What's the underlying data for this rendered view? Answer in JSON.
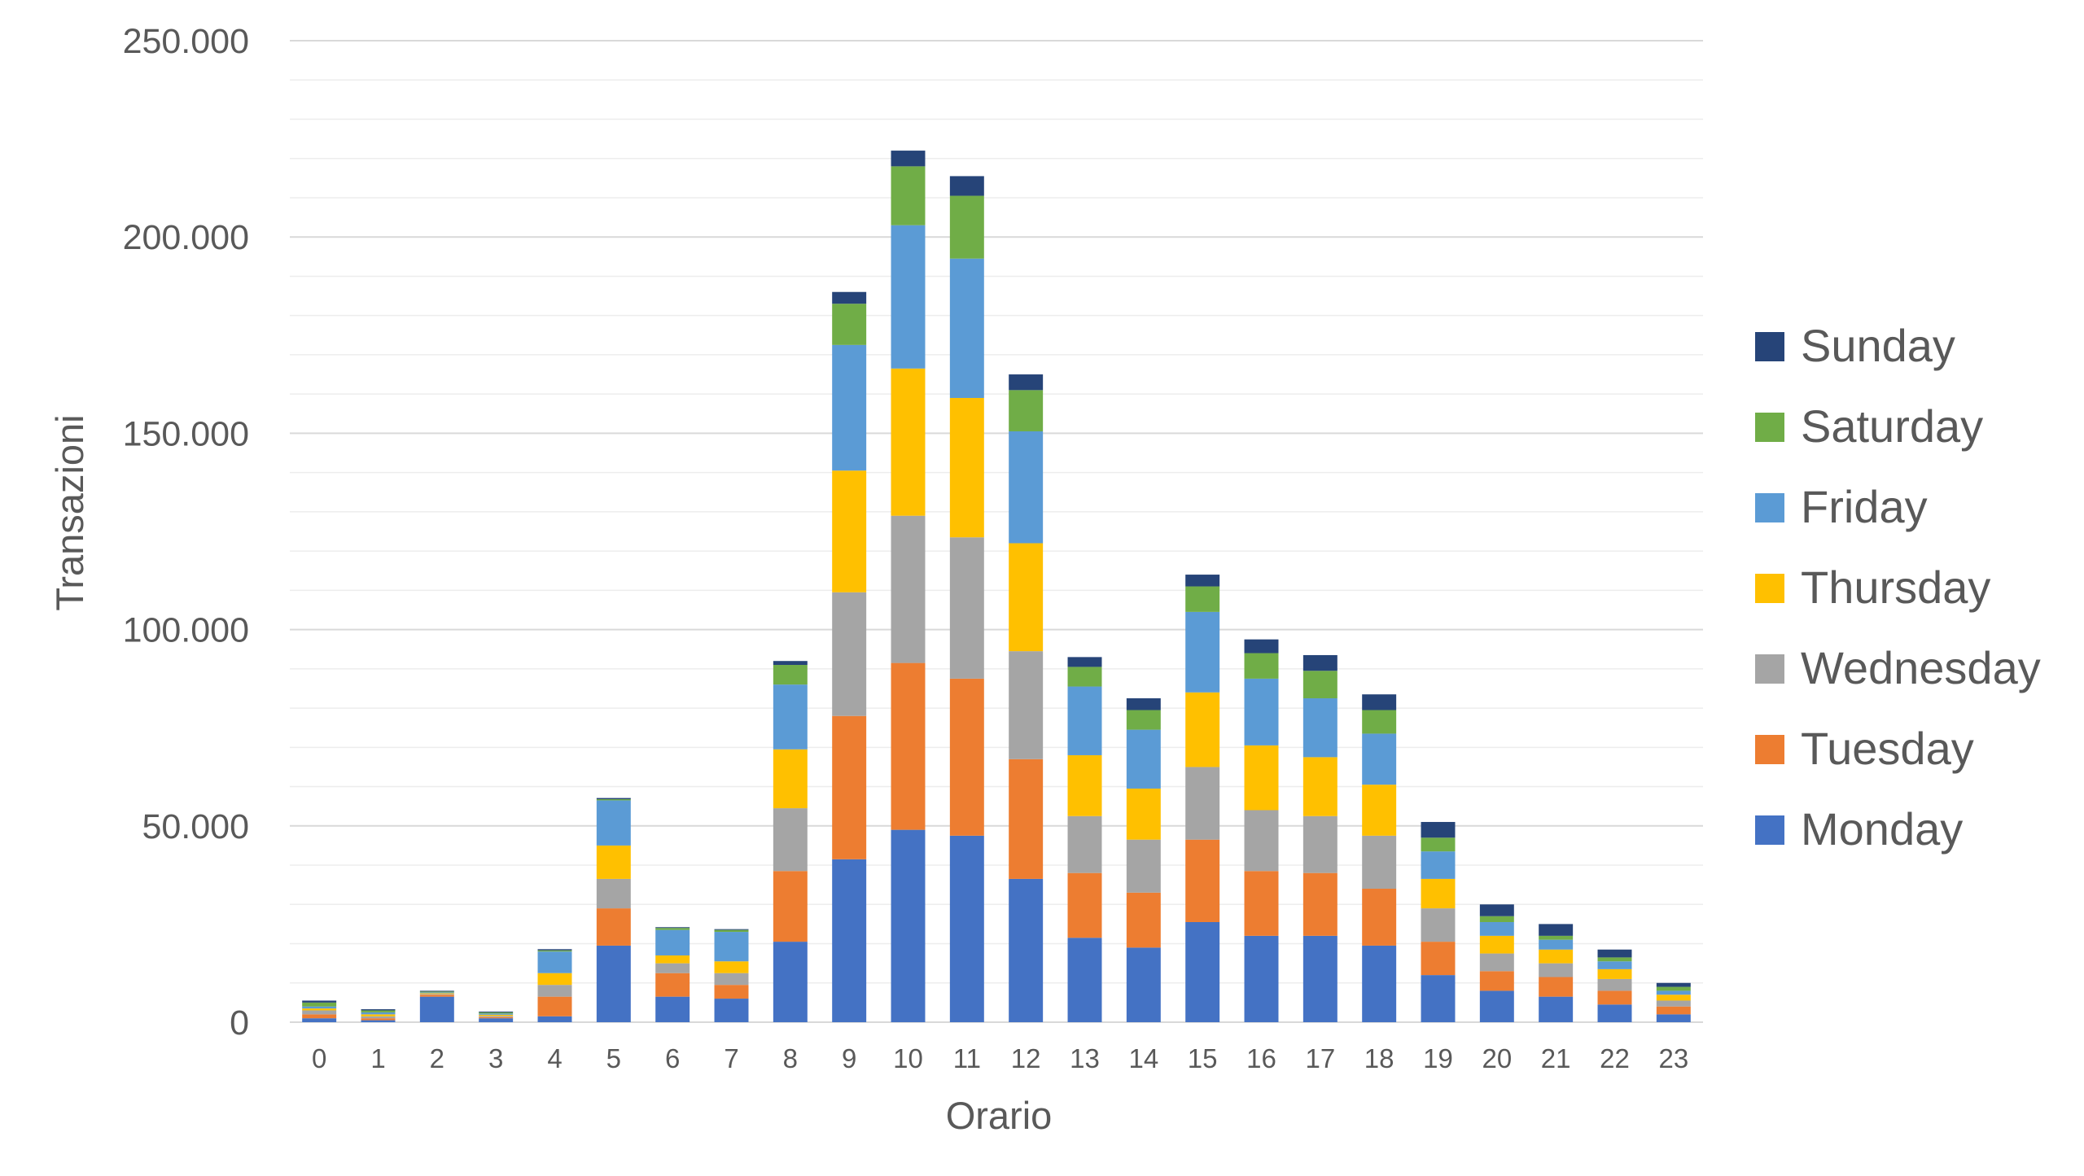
{
  "chart_data": {
    "type": "bar",
    "stacked": true,
    "title": "",
    "xlabel": "Orario",
    "ylabel": "Transazioni",
    "ylim": [
      0,
      250000
    ],
    "y_ticks": [
      0,
      50000,
      100000,
      150000,
      200000,
      250000
    ],
    "y_tick_labels": [
      "0",
      "50.000",
      "100.000",
      "150.000",
      "200.000",
      "250.000"
    ],
    "grid": true,
    "legend_position": "right",
    "categories": [
      "0",
      "1",
      "2",
      "3",
      "4",
      "5",
      "6",
      "7",
      "8",
      "9",
      "10",
      "11",
      "12",
      "13",
      "14",
      "15",
      "16",
      "17",
      "18",
      "19",
      "20",
      "21",
      "22",
      "23"
    ],
    "series": [
      {
        "name": "Monday",
        "color": "#4472C4",
        "values": [
          1000,
          500,
          6500,
          1000,
          1500,
          19500,
          6500,
          6000,
          20500,
          41500,
          49000,
          47500,
          36500,
          21500,
          19000,
          25500,
          22000,
          22000,
          19500,
          12000,
          8000,
          6500,
          4500,
          2000
        ]
      },
      {
        "name": "Tuesday",
        "color": "#ED7D31",
        "values": [
          1000,
          500,
          500,
          300,
          5000,
          9500,
          6000,
          3500,
          18000,
          36500,
          42500,
          40000,
          30500,
          16500,
          14000,
          21000,
          16500,
          16000,
          14500,
          8500,
          5000,
          5000,
          3500,
          2000
        ]
      },
      {
        "name": "Wednesday",
        "color": "#A5A5A5",
        "values": [
          1000,
          500,
          200,
          300,
          3000,
          7500,
          2500,
          3000,
          16000,
          31500,
          37500,
          36000,
          27500,
          14500,
          13500,
          18500,
          15500,
          14500,
          13500,
          8500,
          4500,
          3500,
          3000,
          1500
        ]
      },
      {
        "name": "Thursday",
        "color": "#FFC000",
        "values": [
          500,
          500,
          200,
          300,
          3000,
          8500,
          2000,
          3000,
          15000,
          31000,
          37500,
          35500,
          27500,
          15500,
          13000,
          19000,
          16500,
          15000,
          13000,
          7500,
          4500,
          3500,
          2500,
          1500
        ]
      },
      {
        "name": "Friday",
        "color": "#5B9BD5",
        "values": [
          500,
          500,
          200,
          300,
          5500,
          11500,
          6500,
          7500,
          16500,
          32000,
          36500,
          35500,
          28500,
          17500,
          15000,
          20500,
          17000,
          15000,
          13000,
          7000,
          3500,
          2500,
          2000,
          1000
        ]
      },
      {
        "name": "Saturday",
        "color": "#70AD47",
        "values": [
          1000,
          500,
          200,
          300,
          300,
          300,
          500,
          500,
          5000,
          10500,
          15000,
          16000,
          10500,
          5000,
          5000,
          6500,
          6500,
          7000,
          6000,
          3500,
          1500,
          1000,
          1000,
          1000
        ]
      },
      {
        "name": "Sunday",
        "color": "#264478",
        "values": [
          500,
          300,
          200,
          200,
          300,
          300,
          200,
          200,
          1000,
          3000,
          4000,
          5000,
          4000,
          2500,
          3000,
          3000,
          3500,
          4000,
          4000,
          4000,
          3000,
          3000,
          2000,
          1000
        ]
      }
    ]
  }
}
